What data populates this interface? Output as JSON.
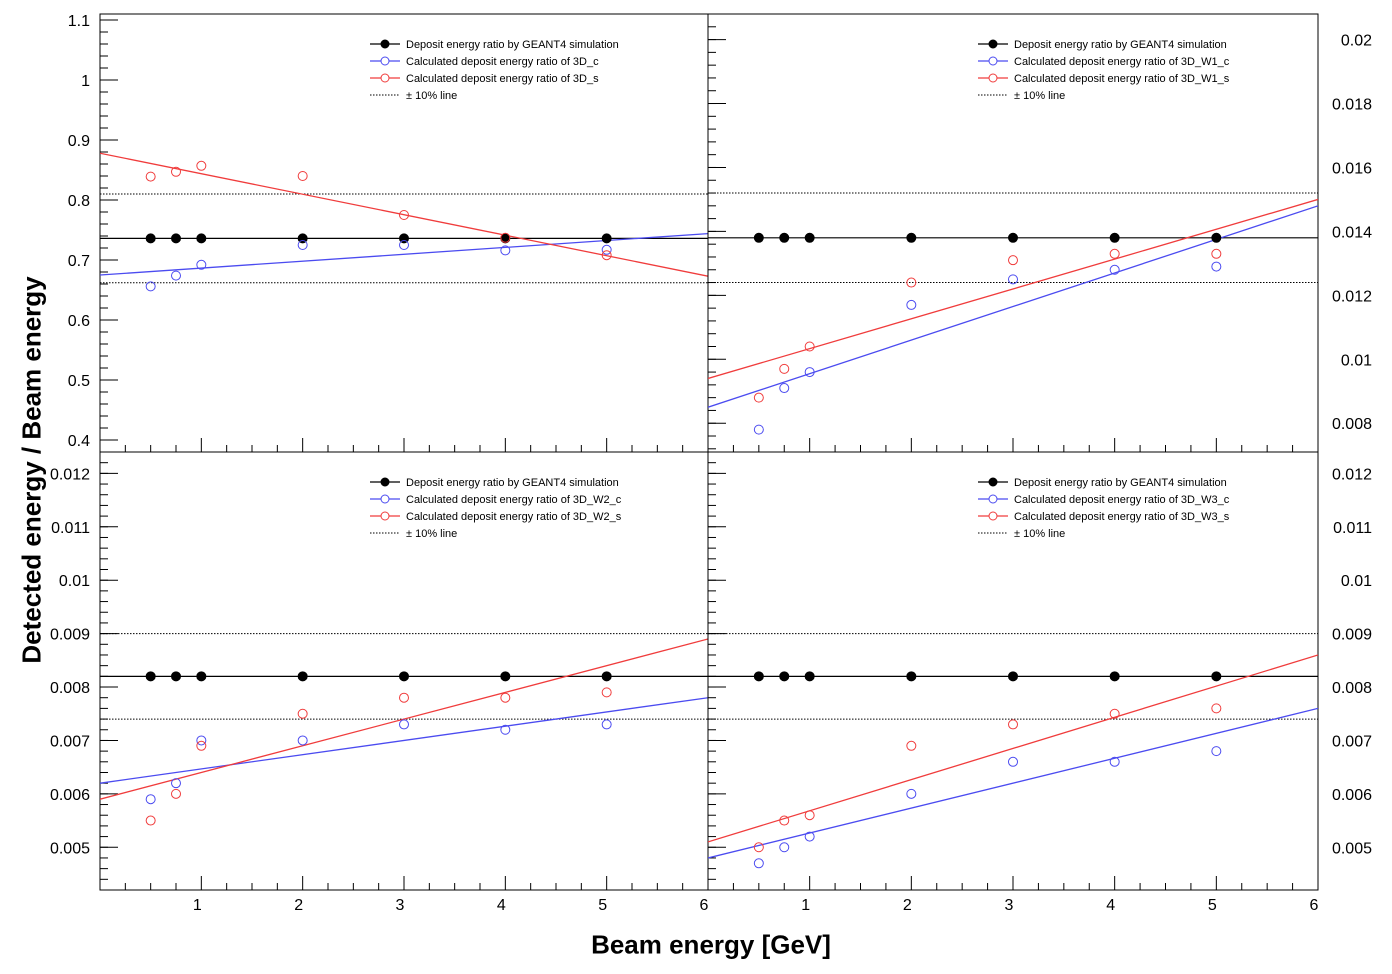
{
  "figure": {
    "ylabel": "Detected energy / Beam energy",
    "xlabel": "Beam energy [GeV]"
  },
  "chart_data": [
    {
      "type": "scatter",
      "panel": "top-left",
      "xlim": [
        0,
        6
      ],
      "ylim": [
        0.38,
        1.11
      ],
      "yticks": [
        0.4,
        0.5,
        0.6,
        0.7,
        0.8,
        0.9,
        1,
        1.1
      ],
      "ytick_labels": [
        "0.4",
        "0.5",
        "0.6",
        "0.7",
        "0.8",
        "0.9",
        "1",
        "1.1"
      ],
      "ytick_side": "left",
      "xticks": [],
      "xtick_labels": [],
      "legend": [
        {
          "label": "Deposit energy ratio by GEANT4 simulation",
          "color": "#000000",
          "marker": "filled"
        },
        {
          "label": "Calculated deposit energy ratio of 3D_c",
          "color": "#4b4bf0",
          "marker": "open"
        },
        {
          "label": "Calculated deposit energy ratio of 3D_s",
          "color": "#f03c3c",
          "marker": "open"
        },
        {
          "label": "± 10% line",
          "color": "#000000",
          "marker": "dotted"
        }
      ],
      "x": [
        0.5,
        0.75,
        1,
        2,
        3,
        4,
        5
      ],
      "series": [
        {
          "name": "Deposit energy ratio by GEANT4 simulation",
          "color": "#000000",
          "filled": true,
          "values": [
            0.736,
            0.736,
            0.736,
            0.736,
            0.736,
            0.736,
            0.736
          ]
        },
        {
          "name": "Calculated deposit energy ratio of 3D_c",
          "color": "#4b4bf0",
          "filled": false,
          "values": [
            0.656,
            0.674,
            0.692,
            0.725,
            0.725,
            0.716,
            0.717
          ]
        },
        {
          "name": "Calculated deposit energy ratio of 3D_s",
          "color": "#f03c3c",
          "filled": false,
          "values": [
            0.839,
            0.847,
            0.857,
            0.84,
            0.775,
            0.737,
            0.708
          ]
        }
      ],
      "fits": [
        {
          "color": "#4b4bf0",
          "x": [
            0,
            6
          ],
          "y": [
            0.675,
            0.744
          ]
        },
        {
          "color": "#f03c3c",
          "x": [
            0,
            6
          ],
          "y": [
            0.878,
            0.673
          ]
        }
      ],
      "reference": {
        "center": 0.736,
        "band": [
          0.662,
          0.81
        ]
      }
    },
    {
      "type": "scatter",
      "panel": "top-right",
      "xlim": [
        0,
        6
      ],
      "ylim": [
        0.0071,
        0.0208
      ],
      "yticks": [
        0.008,
        0.01,
        0.012,
        0.014,
        0.016,
        0.018,
        0.02
      ],
      "ytick_labels": [
        "0.008",
        "0.01",
        "0.012",
        "0.014",
        "0.016",
        "0.018",
        "0.02"
      ],
      "ytick_side": "right",
      "xticks": [],
      "xtick_labels": [],
      "legend": [
        {
          "label": "Deposit energy ratio by GEANT4 simulation",
          "color": "#000000",
          "marker": "filled"
        },
        {
          "label": "Calculated deposit energy ratio of 3D_W1_c",
          "color": "#4b4bf0",
          "marker": "open"
        },
        {
          "label": "Calculated deposit energy ratio of 3D_W1_s",
          "color": "#f03c3c",
          "marker": "open"
        },
        {
          "label": "± 10% line",
          "color": "#000000",
          "marker": "dotted"
        }
      ],
      "x": [
        0.5,
        0.75,
        1,
        2,
        3,
        4,
        5
      ],
      "series": [
        {
          "name": "Deposit energy ratio by GEANT4 simulation",
          "color": "#000000",
          "filled": true,
          "values": [
            0.0138,
            0.0138,
            0.0138,
            0.0138,
            0.0138,
            0.0138,
            0.0138
          ]
        },
        {
          "name": "Calculated deposit energy ratio of 3D_W1_c",
          "color": "#4b4bf0",
          "filled": false,
          "values": [
            0.0078,
            0.0091,
            0.0096,
            0.0117,
            0.0125,
            0.0128,
            0.0129
          ]
        },
        {
          "name": "Calculated deposit energy ratio of 3D_W1_s",
          "color": "#f03c3c",
          "filled": false,
          "values": [
            0.0088,
            0.0097,
            0.0104,
            0.0124,
            0.0131,
            0.0133,
            0.0133
          ]
        }
      ],
      "fits": [
        {
          "color": "#4b4bf0",
          "x": [
            0,
            6
          ],
          "y": [
            0.0085,
            0.0148
          ]
        },
        {
          "color": "#f03c3c",
          "x": [
            0,
            6
          ],
          "y": [
            0.0094,
            0.015
          ]
        }
      ],
      "reference": {
        "center": 0.0138,
        "band": [
          0.0124,
          0.0152
        ]
      }
    },
    {
      "type": "scatter",
      "panel": "bottom-left",
      "xlim": [
        0,
        6
      ],
      "ylim": [
        0.0042,
        0.0124
      ],
      "yticks": [
        0.005,
        0.006,
        0.007,
        0.008,
        0.009,
        0.01,
        0.011,
        0.012
      ],
      "ytick_labels": [
        "0.005",
        "0.006",
        "0.007",
        "0.008",
        "0.009",
        "0.01",
        "0.011",
        "0.012"
      ],
      "ytick_side": "left",
      "xticks": [
        1,
        2,
        3,
        4,
        5,
        6
      ],
      "xtick_labels": [
        "1",
        "2",
        "3",
        "4",
        "5",
        "6"
      ],
      "legend": [
        {
          "label": "Deposit energy ratio by GEANT4 simulation",
          "color": "#000000",
          "marker": "filled"
        },
        {
          "label": "Calculated deposit energy ratio of 3D_W2_c",
          "color": "#4b4bf0",
          "marker": "open"
        },
        {
          "label": "Calculated deposit energy ratio of 3D_W2_s",
          "color": "#f03c3c",
          "marker": "open"
        },
        {
          "label": "± 10% line",
          "color": "#000000",
          "marker": "dotted"
        }
      ],
      "x": [
        0.5,
        0.75,
        1,
        2,
        3,
        4,
        5
      ],
      "series": [
        {
          "name": "Deposit energy ratio by GEANT4 simulation",
          "color": "#000000",
          "filled": true,
          "values": [
            0.0082,
            0.0082,
            0.0082,
            0.0082,
            0.0082,
            0.0082,
            0.0082
          ]
        },
        {
          "name": "Calculated deposit energy ratio of 3D_W2_c",
          "color": "#4b4bf0",
          "filled": false,
          "values": [
            0.0059,
            0.0062,
            0.007,
            0.007,
            0.0073,
            0.0072,
            0.0073
          ]
        },
        {
          "name": "Calculated deposit energy ratio of 3D_W2_s",
          "color": "#f03c3c",
          "filled": false,
          "values": [
            0.0055,
            0.006,
            0.0069,
            0.0075,
            0.0078,
            0.0078,
            0.0079
          ]
        }
      ],
      "fits": [
        {
          "color": "#4b4bf0",
          "x": [
            0,
            6
          ],
          "y": [
            0.0062,
            0.0078
          ]
        },
        {
          "color": "#f03c3c",
          "x": [
            0,
            6
          ],
          "y": [
            0.0059,
            0.0089
          ]
        }
      ],
      "reference": {
        "center": 0.0082,
        "band": [
          0.0074,
          0.009
        ]
      }
    },
    {
      "type": "scatter",
      "panel": "bottom-right",
      "xlim": [
        0,
        6
      ],
      "ylim": [
        0.0042,
        0.0124
      ],
      "yticks": [
        0.005,
        0.006,
        0.007,
        0.008,
        0.009,
        0.01,
        0.011,
        0.012
      ],
      "ytick_labels": [
        "0.005",
        "0.006",
        "0.007",
        "0.008",
        "0.009",
        "0.01",
        "0.011",
        "0.012"
      ],
      "ytick_side": "right",
      "xticks": [
        1,
        2,
        3,
        4,
        5,
        6
      ],
      "xtick_labels": [
        "1",
        "2",
        "3",
        "4",
        "5",
        "6"
      ],
      "legend": [
        {
          "label": "Deposit energy ratio by GEANT4 simulation",
          "color": "#000000",
          "marker": "filled"
        },
        {
          "label": "Calculated deposit energy ratio of 3D_W3_c",
          "color": "#4b4bf0",
          "marker": "open"
        },
        {
          "label": "Calculated deposit energy ratio of 3D_W3_s",
          "color": "#f03c3c",
          "marker": "open"
        },
        {
          "label": "± 10% line",
          "color": "#000000",
          "marker": "dotted"
        }
      ],
      "x": [
        0.5,
        0.75,
        1,
        2,
        3,
        4,
        5
      ],
      "series": [
        {
          "name": "Deposit energy ratio by GEANT4 simulation",
          "color": "#000000",
          "filled": true,
          "values": [
            0.0082,
            0.0082,
            0.0082,
            0.0082,
            0.0082,
            0.0082,
            0.0082
          ]
        },
        {
          "name": "Calculated deposit energy ratio of 3D_W3_c",
          "color": "#4b4bf0",
          "filled": false,
          "values": [
            0.0047,
            0.005,
            0.0052,
            0.006,
            0.0066,
            0.0066,
            0.0068
          ]
        },
        {
          "name": "Calculated deposit energy ratio of 3D_W3_s",
          "color": "#f03c3c",
          "filled": false,
          "values": [
            0.005,
            0.0055,
            0.0056,
            0.0069,
            0.0073,
            0.0075,
            0.0076
          ]
        }
      ],
      "fits": [
        {
          "color": "#4b4bf0",
          "x": [
            0,
            6
          ],
          "y": [
            0.0048,
            0.0076
          ]
        },
        {
          "color": "#f03c3c",
          "x": [
            0,
            6
          ],
          "y": [
            0.0051,
            0.0086
          ]
        }
      ],
      "reference": {
        "center": 0.0082,
        "band": [
          0.0074,
          0.009
        ]
      }
    }
  ]
}
